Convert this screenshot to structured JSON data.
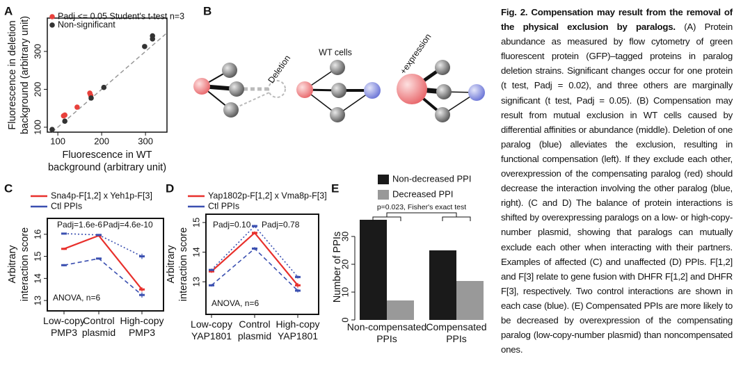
{
  "panels": [
    "A",
    "B",
    "C",
    "D",
    "E"
  ],
  "chart_data": [
    {
      "type": "scatter",
      "x_label": [
        "Fluorescence in WT",
        "background (arbitrary unit)"
      ],
      "y_label": [
        "Fluorescence in deletion",
        "background (arbitrary unit)"
      ],
      "xlim": [
        76,
        349
      ],
      "ylim": [
        87,
        388
      ],
      "xticks": [
        100,
        200,
        300
      ],
      "yticks": [
        100,
        200,
        300
      ],
      "series": [
        {
          "name": "Padj <= 0.05 Student's t-test n=3",
          "color": "#e8413c",
          "x": [
            113,
            116,
            144,
            173,
            175
          ],
          "values": [
            130,
            132,
            153,
            190,
            184
          ]
        },
        {
          "name": "Non-significant",
          "color": "#333333",
          "x": [
            87,
            116,
            176,
            205,
            298,
            316,
            316
          ],
          "values": [
            94,
            116,
            177,
            205,
            313,
            341,
            333
          ]
        }
      ]
    },
    {
      "type": "line",
      "y_label": [
        "Arbitrary",
        "interaction score"
      ],
      "categories": [
        "Low-copy PMP3",
        "Control plasmid",
        "High-copy PMP3"
      ],
      "ylim": [
        12.53,
        16.72
      ],
      "yticks": [
        13,
        14,
        15,
        16
      ],
      "series": [
        {
          "name": "Sna4p-F[1,2] x Yeh1p-F[3]",
          "color": "#e8302c",
          "style": "solid",
          "values": [
            15.34,
            15.94,
            13.5
          ],
          "errors": [
            0.05,
            0.05,
            0.1
          ]
        },
        {
          "name": "Ctl PPIs",
          "color": "#3a4fb0",
          "style": "dotted",
          "values": [
            16.03,
            15.97,
            15.0
          ],
          "errors": [
            0.04,
            0.04,
            0.12
          ]
        },
        {
          "color": "#3a4fb0",
          "style": "dashed",
          "values": [
            14.6,
            14.9,
            13.25
          ],
          "errors": [
            0.05,
            0.04,
            0.12
          ]
        }
      ],
      "annotations": [
        "Padj=1.6e-6",
        "Padj=4.6e-10",
        "ANOVA, n=6"
      ]
    },
    {
      "type": "line",
      "y_label": [
        "Arbitrary",
        "interaction score"
      ],
      "categories": [
        "Low-copy YAP1801",
        "Control plasmid",
        "High-copy YAP1801"
      ],
      "ylim": [
        11.9,
        15.28
      ],
      "yticks": [
        13,
        14,
        15
      ],
      "series": [
        {
          "name": "Yap1802p-F[1,2] x Vma8p-F[3]",
          "color": "#e8302c",
          "style": "solid",
          "values": [
            13.35,
            14.65,
            12.88
          ],
          "errors": [
            0.05,
            0.05,
            0.08
          ]
        },
        {
          "name": "Ctl PPIs",
          "color": "#3a4fb0",
          "style": "dotted",
          "values": [
            13.4,
            14.88,
            13.16
          ],
          "errors": [
            0.04,
            0.04,
            0.05
          ]
        },
        {
          "color": "#3a4fb0",
          "style": "dashed",
          "values": [
            12.88,
            14.12,
            12.7
          ],
          "errors": [
            0.04,
            0.05,
            0.06
          ]
        }
      ],
      "annotations": [
        "Padj=0.10",
        "Padj=0.78",
        "ANOVA, n=6"
      ]
    },
    {
      "type": "bar",
      "y_label": "Number of PPIs",
      "categories": [
        "Non-compensated PPIs",
        "Compensated PPIs"
      ],
      "ylim": [
        0,
        38
      ],
      "yticks": [
        0,
        10,
        20,
        30
      ],
      "series": [
        {
          "name": "Non-decreased PPI",
          "color": "#1a1a1a",
          "values": [
            36,
            25
          ]
        },
        {
          "name": "Decreased PPI",
          "color": "#999999",
          "values": [
            7,
            14
          ]
        }
      ],
      "annotations": [
        "p=0.023, Fisher's exact test"
      ]
    }
  ],
  "diagram": {
    "labels": [
      "Deletion",
      "WT cells",
      "+expression"
    ]
  },
  "caption": {
    "title": "Fig. 2. Compensation may result from the removal of the physical exclusion by paralogs.",
    "body": "(A) Protein abundance as measured by flow cytometry of green fluorescent protein (GFP)–tagged proteins in paralog deletion strains. Significant changes occur for one protein (t test, Padj = 0.02), and three others are marginally significant (t test, Padj = 0.05). (B) Compensation may result from mutual exclusion in WT cells caused by differential affinities or abundance (middle). Deletion of one paralog (blue) alleviates the exclusion, resulting in functional compensation (left). If they exclude each other, overexpression of the compensating paralog (red) should decrease the interaction involving the other paralog (blue, right). (C and D) The balance of protein interactions is shifted by overexpressing paralogs on a low- or high-copy-number plasmid, showing that paralogs can mutually exclude each other when interacting with their partners. Examples of affected (C) and unaffected (D) PPIs. F[1,2] and F[3] relate to gene fusion with DHFR F[1,2] and DHFR F[3], respectively. Two control interactions are shown in each case (blue). (E) Compensated PPIs are more likely to be decreased by overexpression of the compensating paralog (low-copy-number plasmid) than noncompensated ones."
  }
}
